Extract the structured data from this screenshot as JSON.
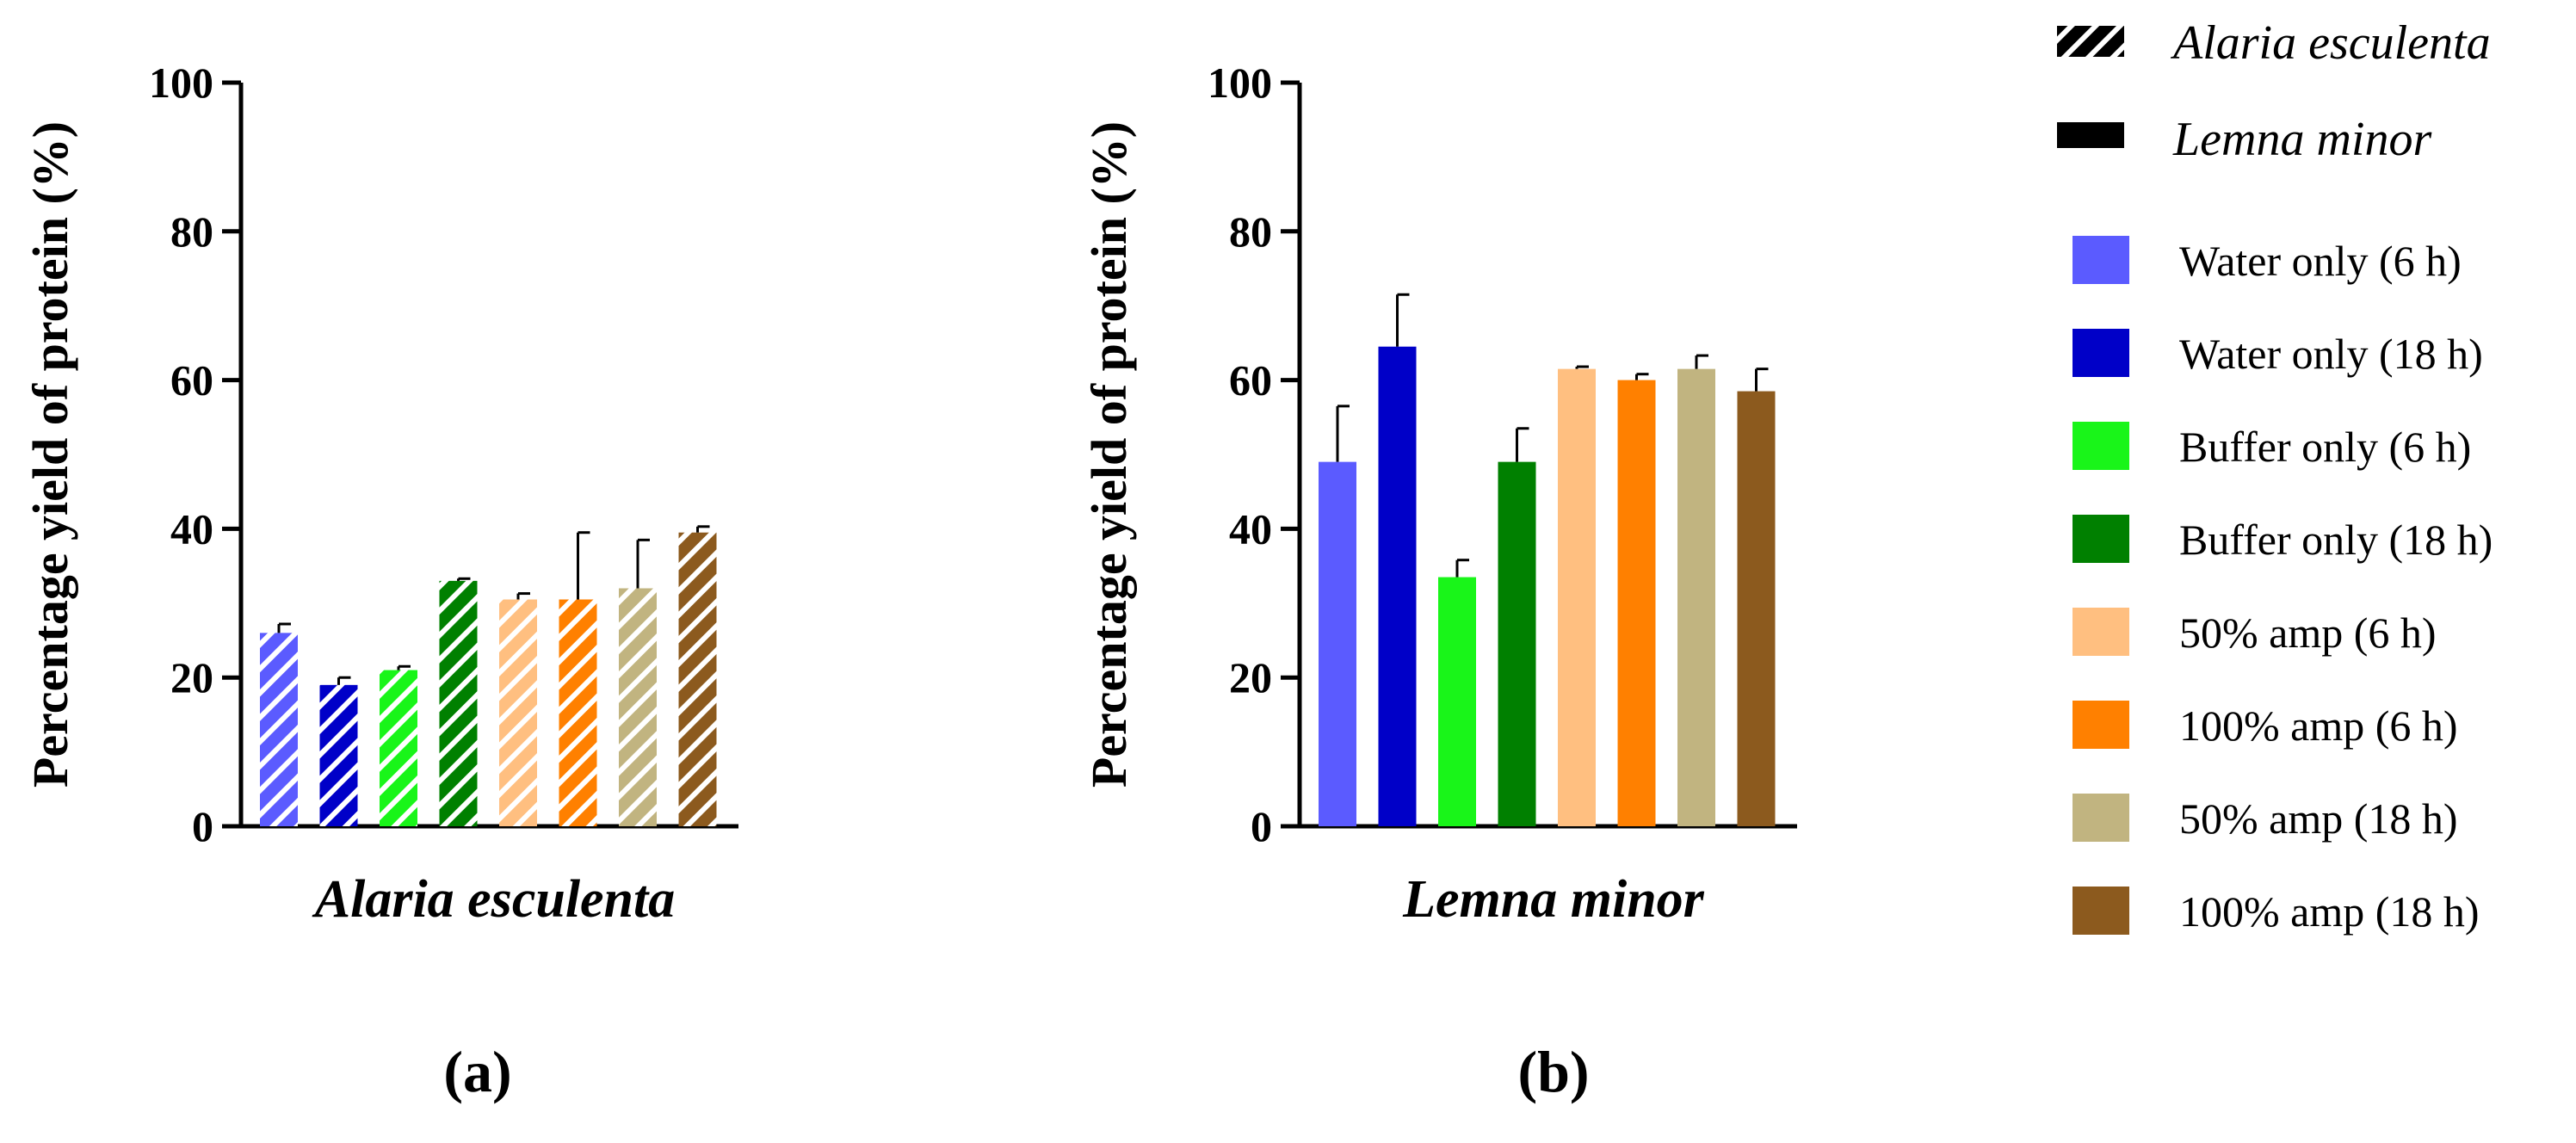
{
  "chart_data": [
    {
      "type": "bar",
      "panel": "(a)",
      "title": "",
      "xlabel": "Alaria esculenta",
      "ylabel": "Percentage yield of protein (%)",
      "ylim": [
        0,
        100
      ],
      "yticks": [
        "0",
        "20",
        "40",
        "60",
        "80",
        "100"
      ],
      "fill": "hatched",
      "categories": [
        "Water only (6 h)",
        "Water only (18 h)",
        "Buffer only (6 h)",
        "Buffer only (18 h)",
        "50% amp (6 h)",
        "100% amp (6 h)",
        "50% amp (18 h)",
        "100% amp (18 h)"
      ],
      "values": [
        26,
        19,
        21,
        33,
        30.5,
        30.5,
        32,
        39.5
      ],
      "errors": [
        1.2,
        1.0,
        0.5,
        0.3,
        0.8,
        9,
        6.5,
        0.8
      ]
    },
    {
      "type": "bar",
      "panel": "(b)",
      "title": "",
      "xlabel": "Lemna minor",
      "ylabel": "Percentage yield of protein (%)",
      "ylim": [
        0,
        100
      ],
      "yticks": [
        "0",
        "20",
        "40",
        "60",
        "80",
        "100"
      ],
      "fill": "solid",
      "categories": [
        "Water only (6 h)",
        "Water only (18 h)",
        "Buffer only (6 h)",
        "Buffer only (18 h)",
        "50% amp (6 h)",
        "100% amp (6 h)",
        "50% amp (18 h)",
        "100% amp (18 h)"
      ],
      "values": [
        49,
        64.5,
        33.5,
        49,
        61.5,
        60,
        61.5,
        58.5
      ],
      "errors": [
        7.5,
        7,
        2.3,
        4.5,
        0.3,
        0.8,
        1.8,
        3
      ]
    }
  ],
  "legend": {
    "species": [
      {
        "label": "Alaria esculenta",
        "swatch": "hatched"
      },
      {
        "label": "Lemna minor",
        "swatch": "solid"
      }
    ],
    "treatments": [
      {
        "label": "Water only (6 h)",
        "color": "#5b5bff"
      },
      {
        "label": "Water only (18 h)",
        "color": "#0000c8"
      },
      {
        "label": "Buffer only (6 h)",
        "color": "#19f519"
      },
      {
        "label": "Buffer only (18 h)",
        "color": "#008000"
      },
      {
        "label": "50% amp (6 h)",
        "color": "#ffbf80"
      },
      {
        "label": "100% amp (6 h)",
        "color": "#ff8000"
      },
      {
        "label": "50% amp (18 h)",
        "color": "#c1b480"
      },
      {
        "label": "100% amp (18 h)",
        "color": "#8c5a1e"
      }
    ]
  }
}
